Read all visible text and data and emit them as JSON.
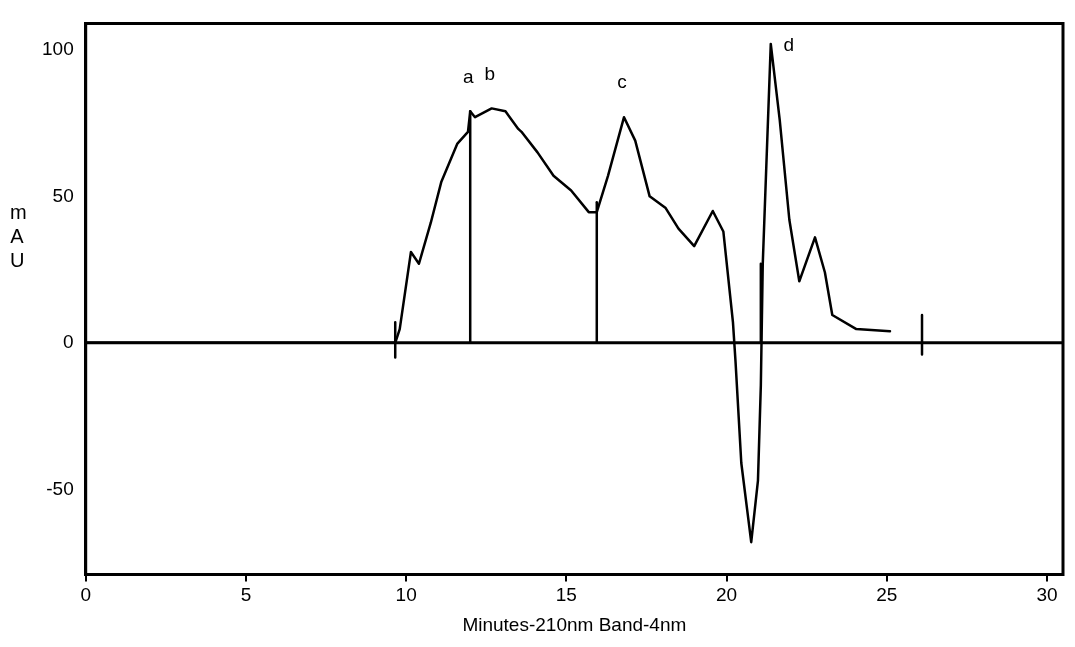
{
  "chart_data": {
    "type": "line",
    "xlabel": "Minutes-210nm Band-4nm",
    "ylabel": "mAU",
    "xlim": [
      0,
      30.5
    ],
    "ylim": [
      -79,
      109
    ],
    "xticks": [
      0,
      5,
      10,
      15,
      20,
      25,
      30
    ],
    "yticks": [
      -50,
      0,
      50,
      100
    ],
    "grid": false,
    "legend": false,
    "marker": "none",
    "line_style": "solid",
    "ref_lines": [
      {
        "axis": "y",
        "value": 0,
        "color": "#000000"
      }
    ],
    "annotations": [
      {
        "text": "a",
        "x": 12.0,
        "y": 79
      },
      {
        "text": "b",
        "x": 12.67,
        "y": 80
      },
      {
        "text": "c",
        "x": 16.8,
        "y": 77
      },
      {
        "text": "d",
        "x": 21.38,
        "y": 102
      }
    ],
    "series": [
      {
        "color": "#000000",
        "x": [
          0,
          3,
          6,
          9.66,
          9.8,
          10.15,
          10.4,
          10.77,
          11.1,
          11.6,
          11.93,
          12.0,
          12.15,
          12.67,
          13.1,
          13.5,
          13.6,
          14.1,
          14.6,
          15.15,
          15.7,
          15.95,
          16.3,
          16.8,
          17.15,
          17.6,
          18.1,
          18.5,
          18.99,
          19.57,
          19.9,
          20.2,
          20.28,
          20.46,
          20.77,
          20.98,
          21.07,
          21.13,
          21.38,
          21.66,
          21.96,
          22.27,
          22.76,
          23.07,
          23.3,
          24.05,
          25.1
        ],
        "values": [
          0,
          0,
          0,
          0,
          4.7,
          31,
          27,
          41,
          55,
          68,
          72,
          79,
          77,
          80,
          79,
          73,
          72,
          65,
          57,
          52,
          44.6,
          44.6,
          57,
          77,
          69,
          50,
          46,
          39,
          33,
          45,
          38,
          7,
          -6.4,
          -41,
          -68,
          -47,
          -14.5,
          27,
          102,
          76,
          42,
          21,
          36,
          24,
          9.5,
          4.7,
          4
        ]
      },
      {
        "color": "#000000",
        "x": [
          9.66,
          9.66
        ],
        "values": [
          7,
          -5
        ]
      },
      {
        "color": "#000000",
        "x": [
          12.0,
          12.0
        ],
        "values": [
          0,
          79
        ]
      },
      {
        "color": "#000000",
        "x": [
          15.95,
          15.95
        ],
        "values": [
          0,
          48
        ]
      },
      {
        "color": "#000000",
        "x": [
          21.07,
          21.07
        ],
        "values": [
          0,
          27
        ]
      },
      {
        "color": "#000000",
        "x": [
          26.1,
          26.1
        ],
        "values": [
          9.5,
          -4
        ]
      }
    ]
  }
}
